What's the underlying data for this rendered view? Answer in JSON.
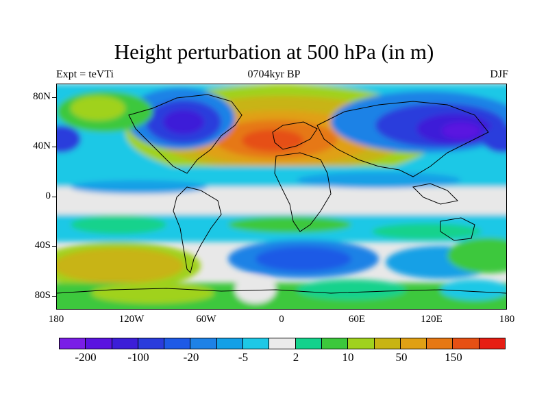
{
  "title": "Height perturbation at 500 hPa (in m)",
  "subtitle_left": "Expt = teVTi",
  "subtitle_center": "0704kyr BP",
  "subtitle_right": "DJF",
  "lat_ticks": [
    "80N",
    "40N",
    "0",
    "40S",
    "80S"
  ],
  "lon_ticks": [
    "180",
    "120W",
    "60W",
    "0",
    "60E",
    "120E",
    "180"
  ],
  "colorbar": {
    "labels": [
      "-200",
      "-100",
      "-20",
      "-5",
      "2",
      "10",
      "50",
      "150"
    ],
    "colors": [
      "#7a1ee6",
      "#5a14e0",
      "#3c1ed8",
      "#2a3cdc",
      "#1e5ae6",
      "#1e82e6",
      "#14a0e6",
      "#1ec8e6",
      "#ebebeb",
      "#14d28c",
      "#3cc83c",
      "#a0d21e",
      "#c8b414",
      "#e0a014",
      "#e67814",
      "#e65014",
      "#e61e14"
    ]
  }
}
